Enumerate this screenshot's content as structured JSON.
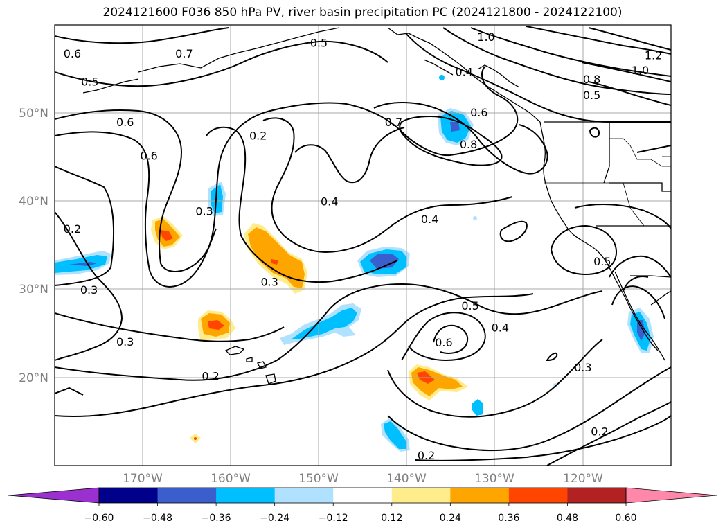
{
  "title": "2024121600 F036 850 hPa PV, river basin precipitation PC (2024121800 - 2024122100)",
  "map": {
    "lon_range": [
      -180,
      -110
    ],
    "lat_range": [
      10,
      60
    ],
    "lat_labels": [
      "50°N",
      "40°N",
      "30°N",
      "20°N"
    ],
    "lon_labels": [
      "170°W",
      "160°W",
      "150°W",
      "140°W",
      "130°W",
      "120°W"
    ],
    "contour_labels": [
      {
        "text": "0.6",
        "lon": -178,
        "lat": 56.7
      },
      {
        "text": "0.7",
        "lon": -165.3,
        "lat": 56.7
      },
      {
        "text": "0.5",
        "lon": -176,
        "lat": 53.5
      },
      {
        "text": "0.5",
        "lon": -150,
        "lat": 57.9
      },
      {
        "text": "1.0",
        "lon": -131,
        "lat": 58.6
      },
      {
        "text": "0.4",
        "lon": -133.5,
        "lat": 54.6
      },
      {
        "text": "1.2",
        "lon": -112,
        "lat": 56.5
      },
      {
        "text": "1.0",
        "lon": -113.5,
        "lat": 54.8
      },
      {
        "text": "0.8",
        "lon": -119,
        "lat": 53.8
      },
      {
        "text": "0.5",
        "lon": -119,
        "lat": 52
      },
      {
        "text": "0.6",
        "lon": -172,
        "lat": 48.9
      },
      {
        "text": "0.6",
        "lon": -169.3,
        "lat": 45.1
      },
      {
        "text": "0.2",
        "lon": -156.9,
        "lat": 47.4
      },
      {
        "text": "0.7",
        "lon": -141.5,
        "lat": 48.9
      },
      {
        "text": "0.6",
        "lon": -131.8,
        "lat": 50
      },
      {
        "text": "0.8",
        "lon": -133,
        "lat": 46.4
      },
      {
        "text": "0.3",
        "lon": -163,
        "lat": 38.8
      },
      {
        "text": "0.4",
        "lon": -148.8,
        "lat": 39.9
      },
      {
        "text": "0.4",
        "lon": -137.4,
        "lat": 37.9
      },
      {
        "text": "0.2",
        "lon": -178,
        "lat": 36.8
      },
      {
        "text": "0.3",
        "lon": -155.6,
        "lat": 30.8
      },
      {
        "text": "0.3",
        "lon": -176.1,
        "lat": 29.9
      },
      {
        "text": "0.5",
        "lon": -117.8,
        "lat": 33.1
      },
      {
        "text": "0.5",
        "lon": -132.8,
        "lat": 28.1
      },
      {
        "text": "0.6",
        "lon": -135.8,
        "lat": 23.9
      },
      {
        "text": "0.4",
        "lon": -129.4,
        "lat": 25.6
      },
      {
        "text": "0.3",
        "lon": -172,
        "lat": 24
      },
      {
        "text": "0.3",
        "lon": -120,
        "lat": 21.1
      },
      {
        "text": "0.2",
        "lon": -162.3,
        "lat": 20.1
      },
      {
        "text": "0.2",
        "lon": -118.1,
        "lat": 13.8
      },
      {
        "text": "0.2",
        "lon": -137.8,
        "lat": 11.1
      }
    ]
  },
  "colorbar": {
    "levels": [
      -0.72,
      -0.6,
      -0.48,
      -0.36,
      -0.24,
      -0.12,
      0.12,
      0.24,
      0.36,
      0.48,
      0.6,
      0.72
    ],
    "tick_labels": [
      "−0.60",
      "−0.48",
      "−0.36",
      "−0.24",
      "−0.12",
      "0.12",
      "0.24",
      "0.36",
      "0.48",
      "0.60"
    ],
    "colors": [
      "#9b30d0",
      "#00008b",
      "#3a5fcd",
      "#00bfff",
      "#b0e2ff",
      "#ffffff",
      "#ffec8b",
      "#ffa500",
      "#ff4500",
      "#b22222",
      "#ff88aa"
    ],
    "under_color": "#9b30d0",
    "over_color": "#ff88aa"
  }
}
